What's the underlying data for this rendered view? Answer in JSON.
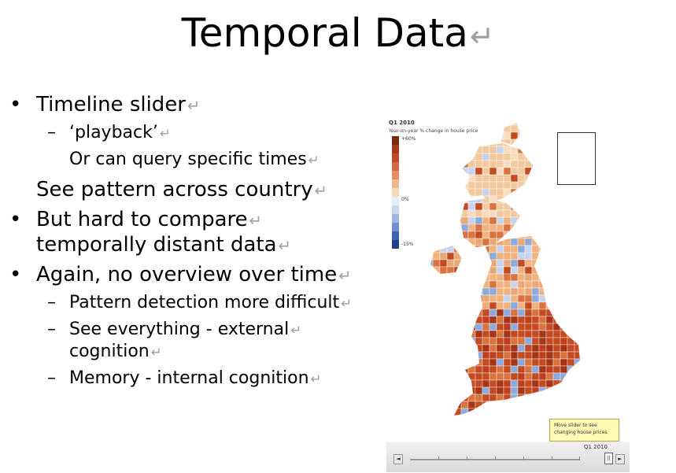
{
  "slide": {
    "title": "Temporal Data",
    "return_mark": "↵",
    "bullets": [
      {
        "level": 1,
        "marker": "•",
        "text": "Timeline slider"
      },
      {
        "level": 2,
        "marker": "–",
        "text": "‘playback’"
      },
      {
        "level": 2,
        "marker": "",
        "text": "Or can query specific times"
      },
      {
        "level": 1,
        "marker": "",
        "text": "See pattern across country"
      },
      {
        "level": 1,
        "marker": "•",
        "text": "But hard to compare"
      },
      {
        "level": 1,
        "marker": "",
        "text": "temporally distant data"
      },
      {
        "level": 1,
        "marker": "•",
        "text": "Again, no overview over time"
      },
      {
        "level": 2,
        "marker": "–",
        "text": "Pattern detection more difficult"
      },
      {
        "level": 2,
        "marker": "–",
        "text": "See everything - external"
      },
      {
        "level": 2,
        "marker": "",
        "text": "cognition"
      },
      {
        "level": 2,
        "marker": "–",
        "text": "Memory - internal cognition"
      }
    ]
  },
  "map": {
    "period": "Q1 2010",
    "subtitle": "Year-on-year % change in house price",
    "legend_max": "+60%",
    "legend_mid": "0%",
    "legend_min": "-15%",
    "legend_colors": [
      "#7a2a10",
      "#a83818",
      "#c24a25",
      "#d46a3e",
      "#e48f62",
      "#efb98f",
      "#f6d9bc",
      "#e8ecf7",
      "#c9d6ee",
      "#9fb6e0",
      "#6f8fcf",
      "#3e62b2",
      "#223f8a"
    ],
    "land_colors": [
      "#f3caa0",
      "#e9a877",
      "#d9733f",
      "#c44a22",
      "#a53517",
      "#f6dcc0",
      "#c7d4ee",
      "#8ea9dc",
      "#f0b37f",
      "#bf3f1c"
    ],
    "tooltip_line1": "Move slider to see",
    "tooltip_line2": "changing house prices",
    "slider_label": "Q1 2010",
    "prev_glyph": "◄",
    "next_glyph": "►",
    "pause_glyph": "||"
  }
}
